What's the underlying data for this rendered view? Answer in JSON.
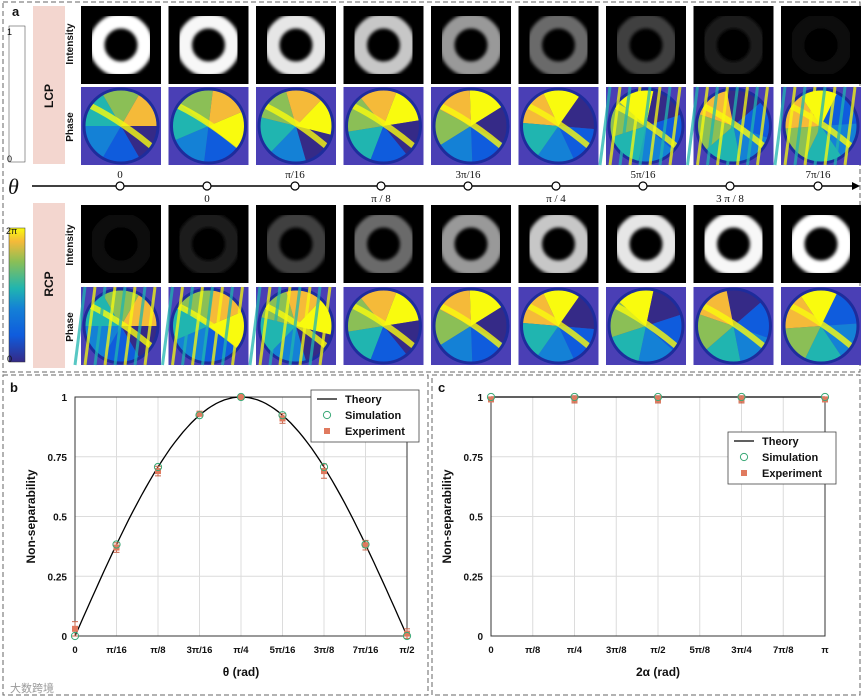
{
  "panel_a": {
    "label": "a",
    "lcp_label": "LCP",
    "rcp_label": "RCP",
    "intensity_label": "Intensity",
    "phase_label": "Phase",
    "theta_symbol": "θ",
    "gray_bar_top": "1",
    "gray_bar_bottom": "0",
    "phase_bar_top": "2π",
    "phase_bar_bottom": "0",
    "upper_axis_labels": [
      "0",
      "π/16",
      "3π/16",
      "5π/16",
      "7π/16"
    ],
    "lower_axis_labels": [
      "0",
      "π  / 8",
      "π  / 4",
      "3 π  / 8"
    ],
    "lcp_intensity": [
      1.0,
      0.97,
      0.9,
      0.78,
      0.6,
      0.42,
      0.25,
      0.1,
      0.03
    ],
    "rcp_intensity": [
      0.03,
      0.1,
      0.25,
      0.42,
      0.6,
      0.78,
      0.9,
      0.97,
      1.0
    ],
    "colors": {
      "gray_light": "#ffffff",
      "gray_dark": "#000000",
      "parula_low": "#352a87",
      "parula_mid": "#20b5b0",
      "parula_high": "#f9fb0e",
      "lcp_bg": "#f3d6cf",
      "rcp_bg": "#f3d6cf"
    }
  },
  "panel_b": {
    "label": "b",
    "chart_data": {
      "type": "line",
      "xlabel": "θ (rad)",
      "ylabel": "Non-separability",
      "x_tick_labels": [
        "0",
        "π/16",
        "π/8",
        "3π/16",
        "π/4",
        "5π/16",
        "3π/8",
        "7π/16",
        "π/2"
      ],
      "y_tick_labels": [
        "0",
        "0.25",
        "0.5",
        "0.75",
        "1"
      ],
      "xlim": [
        0,
        8
      ],
      "ylim": [
        0,
        1
      ],
      "legend": [
        "Theory",
        "Simulation",
        "Experiment"
      ],
      "legend_position": "top-right",
      "series": [
        {
          "name": "Theory",
          "x_unit": "π/16",
          "values_note": "sin(2θ)",
          "x": [
            0,
            0.5,
            1,
            1.5,
            2,
            2.5,
            3,
            3.5,
            4,
            4.5,
            5,
            5.5,
            6,
            6.5,
            7,
            7.5,
            8
          ],
          "values": [
            0,
            0.195,
            0.383,
            0.556,
            0.707,
            0.831,
            0.924,
            0.981,
            1,
            0.981,
            0.924,
            0.831,
            0.707,
            0.556,
            0.383,
            0.195,
            0
          ]
        },
        {
          "name": "Simulation",
          "x": [
            0,
            1,
            2,
            3,
            4,
            5,
            6,
            7,
            8
          ],
          "values": [
            0.0,
            0.383,
            0.707,
            0.924,
            1.0,
            0.924,
            0.707,
            0.383,
            0.0
          ]
        },
        {
          "name": "Experiment",
          "x": [
            0,
            1,
            2,
            3,
            4,
            5,
            6,
            7,
            8
          ],
          "values": [
            0.03,
            0.37,
            0.69,
            0.93,
            1.0,
            0.91,
            0.69,
            0.38,
            0.01
          ],
          "errors": [
            0.03,
            0.02,
            0.02,
            0.01,
            0.01,
            0.02,
            0.03,
            0.02,
            0.02
          ]
        }
      ]
    }
  },
  "panel_c": {
    "label": "c",
    "chart_data": {
      "type": "line",
      "xlabel": "2α (rad)",
      "ylabel": "Non-separability",
      "x_tick_labels": [
        "0",
        "π/8",
        "π/4",
        "3π/8",
        "π/2",
        "5π/8",
        "3π/4",
        "7π/8",
        "π"
      ],
      "y_tick_labels": [
        "0",
        "0.25",
        "0.5",
        "0.75",
        "1"
      ],
      "xlim": [
        0,
        8
      ],
      "ylim": [
        0,
        1
      ],
      "legend": [
        "Theory",
        "Simulation",
        "Experiment"
      ],
      "legend_position": "right",
      "series": [
        {
          "name": "Theory",
          "x": [
            0,
            8
          ],
          "values": [
            1,
            1
          ]
        },
        {
          "name": "Simulation",
          "x": [
            0,
            2,
            4,
            6,
            8
          ],
          "values": [
            1,
            1,
            1,
            1,
            1
          ]
        },
        {
          "name": "Experiment",
          "x": [
            0,
            2,
            4,
            6,
            8
          ],
          "values": [
            0.99,
            0.99,
            0.99,
            0.99,
            0.99
          ],
          "errors": [
            0.01,
            0.015,
            0.015,
            0.015,
            0.01
          ]
        }
      ]
    }
  },
  "watermark": "大数跨境"
}
